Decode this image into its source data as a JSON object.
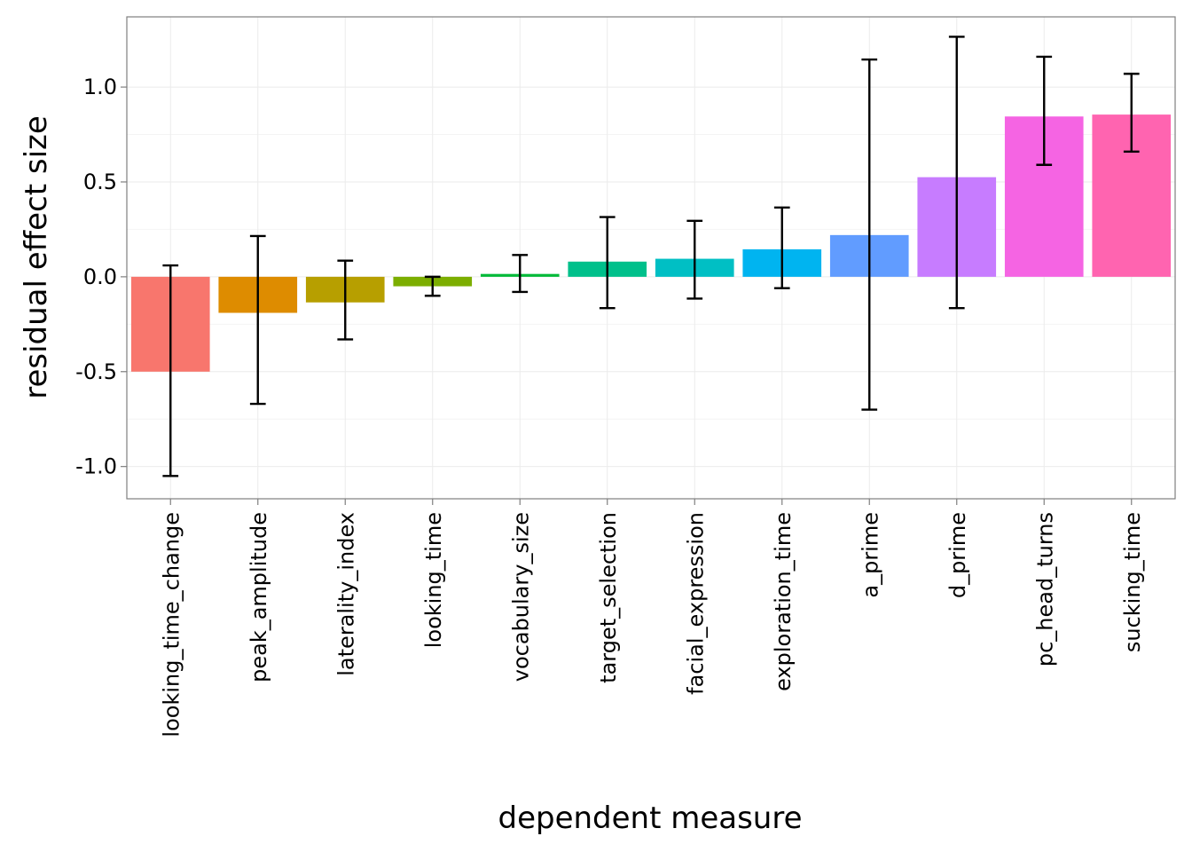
{
  "chart_data": {
    "type": "bar",
    "xlabel": "dependent measure",
    "ylabel": "residual effect size",
    "ylim": [
      -1.17,
      1.37
    ],
    "yticks": [
      -1.0,
      -0.5,
      0.0,
      0.5,
      1.0
    ],
    "ytick_labels": [
      "-1.0",
      "-0.5",
      "0.0",
      "0.5",
      "1.0"
    ],
    "grid": true,
    "legend": "none",
    "categories": [
      "looking_time_change",
      "peak_amplitude",
      "laterality_index",
      "looking_time",
      "vocabulary_size",
      "target_selection",
      "facial_expression",
      "exploration_time",
      "a_prime",
      "d_prime",
      "pc_head_turns",
      "sucking_time"
    ],
    "values": [
      -0.5,
      -0.19,
      -0.135,
      -0.05,
      0.015,
      0.08,
      0.095,
      0.145,
      0.22,
      0.525,
      0.845,
      0.855
    ],
    "error_lower": [
      -1.05,
      -0.67,
      -0.33,
      -0.1,
      -0.08,
      -0.165,
      -0.115,
      -0.06,
      -0.7,
      -0.165,
      0.59,
      0.66
    ],
    "error_upper": [
      0.06,
      0.215,
      0.085,
      0.0,
      0.115,
      0.315,
      0.295,
      0.365,
      1.145,
      1.265,
      1.16,
      1.07
    ],
    "colors": [
      "#F8766D",
      "#DE8C00",
      "#B79F00",
      "#7CAE00",
      "#00BA38",
      "#00C08B",
      "#00BFC4",
      "#00B4F0",
      "#619CFF",
      "#C77CFF",
      "#F564E3",
      "#FF64B0"
    ]
  }
}
